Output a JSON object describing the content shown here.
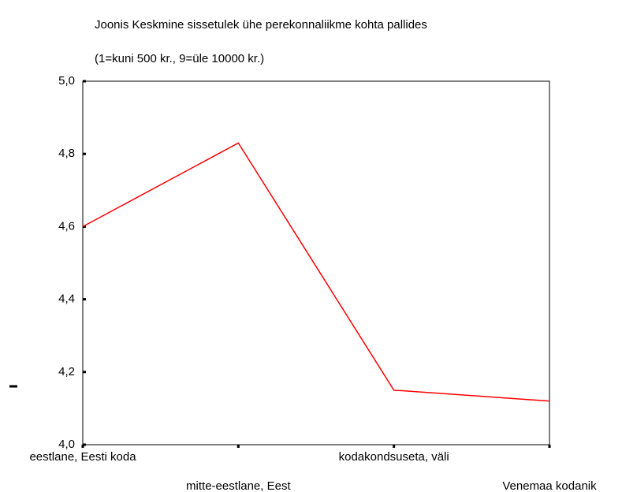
{
  "chart_data": {
    "type": "line",
    "title": "Joonis  Keskmine sissetulek ühe perekonnaliikme kohta pallides",
    "subtitle": "(1=kuni 500 kr., 9=üle 10000 kr.)",
    "categories": [
      "eestlane, Eesti koda",
      "mitte-eestlane, Eest",
      "kodakondsuseta, väli",
      "Venemaa kodanik"
    ],
    "values": [
      4.6,
      4.83,
      4.15,
      4.12
    ],
    "color": "#ff0000",
    "ylim": [
      4.0,
      5.0
    ],
    "yticks": [
      {
        "value": 4.0,
        "label": "4,0"
      },
      {
        "value": 4.2,
        "label": "4,2"
      },
      {
        "value": 4.4,
        "label": "4,4"
      },
      {
        "value": 4.6,
        "label": "4,6"
      },
      {
        "value": 4.8,
        "label": "4,8"
      },
      {
        "value": 5.0,
        "label": "5,0"
      }
    ],
    "grid": false
  }
}
